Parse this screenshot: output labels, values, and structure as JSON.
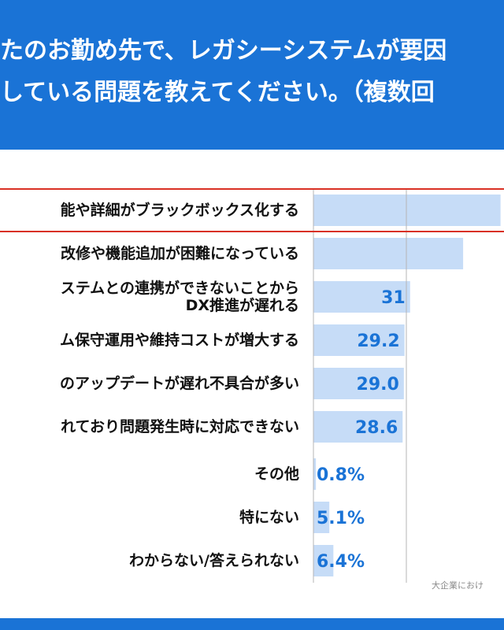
{
  "header": {
    "line1": "たのお勤め先で、レガシーシステムが要因",
    "line2": "している問題を教えてください。（複数回"
  },
  "footnote": "大企業におけ",
  "colors": {
    "header_bg": "#1a73d6",
    "bar": "#c6dcf7",
    "value_text": "#1a73d6",
    "highlight_line": "#d93025",
    "grid": "#b5b5b5"
  },
  "chart_data": {
    "type": "bar",
    "orientation": "horizontal",
    "categories": [
      "能や詳細がブラックボックス化する",
      "改修や機能追加が困難になっている",
      "ステムとの連携ができないことから\nDX推進が遅れる",
      "ム保守運用や維持コストが増大する",
      "のアップデートが遅れ不具合が多い",
      "れており問題発生時に対応できない",
      "その他",
      "特にない",
      "わからない/答えられない"
    ],
    "values": [
      60.0,
      48.0,
      31,
      29.2,
      29.0,
      28.6,
      0.8,
      5.1,
      6.4
    ],
    "value_labels": [
      "",
      "",
      "31",
      "29.2",
      "29.0",
      "28.6",
      "0.8%",
      "5.1%",
      "6.4%"
    ],
    "highlighted_index": 0,
    "grid": true
  }
}
